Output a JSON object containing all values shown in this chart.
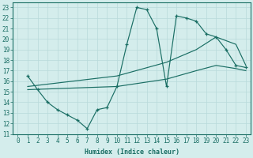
{
  "xlabel": "Humidex (Indice chaleur)",
  "xlim": [
    -0.5,
    23.5
  ],
  "ylim": [
    11,
    23.5
  ],
  "xticks": [
    0,
    1,
    2,
    3,
    4,
    5,
    6,
    7,
    8,
    9,
    10,
    11,
    12,
    13,
    14,
    15,
    16,
    17,
    18,
    19,
    20,
    21,
    22,
    23
  ],
  "yticks": [
    11,
    12,
    13,
    14,
    15,
    16,
    17,
    18,
    19,
    20,
    21,
    22,
    23
  ],
  "bg_color": "#d4edec",
  "line_color": "#1a6e64",
  "grid_color": "#b8dada",
  "zigzag": {
    "x": [
      1,
      2,
      3,
      4,
      5,
      6,
      7,
      8,
      9,
      10,
      11,
      12,
      13,
      14,
      15,
      16,
      17,
      18,
      19,
      20,
      21,
      22,
      23
    ],
    "y": [
      16.5,
      15.2,
      14.0,
      13.3,
      12.8,
      12.3,
      11.5,
      13.3,
      13.5,
      15.5,
      19.5,
      23.0,
      22.8,
      21.0,
      15.5,
      22.2,
      22.0,
      21.7,
      20.5,
      20.2,
      19.0,
      17.5,
      17.3
    ]
  },
  "line_upper": {
    "x": [
      1,
      10,
      15,
      18,
      20,
      22,
      23
    ],
    "y": [
      15.5,
      16.5,
      17.8,
      19.0,
      20.2,
      19.5,
      17.5
    ]
  },
  "line_lower": {
    "x": [
      1,
      10,
      15,
      18,
      20,
      22,
      23
    ],
    "y": [
      15.2,
      15.5,
      16.2,
      17.0,
      17.5,
      17.2,
      17.0
    ]
  }
}
